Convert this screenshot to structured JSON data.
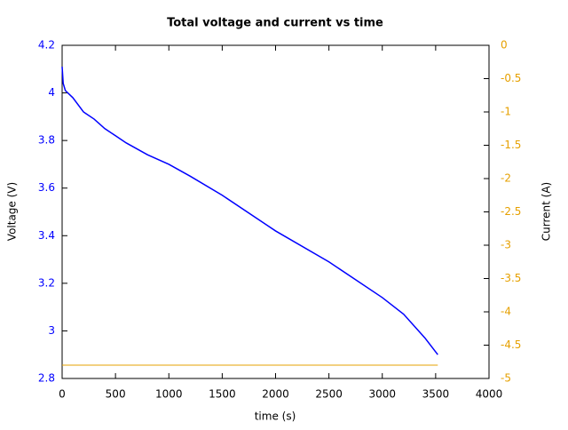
{
  "chart_data": {
    "type": "line",
    "title": "Total voltage and current vs time",
    "x_label": "time (s)",
    "y_label": "Voltage (V)",
    "y2_label": "Current (A)",
    "series": [
      {
        "name": "Voltage",
        "color": "#0000ff",
        "x": [
          0,
          10,
          30,
          100,
          200,
          300,
          400,
          500,
          600,
          800,
          1000,
          1200,
          1500,
          2000,
          2500,
          3000,
          3200,
          3400,
          3520
        ],
        "values": [
          4.11,
          4.04,
          4.01,
          3.98,
          3.92,
          3.89,
          3.85,
          3.82,
          3.79,
          3.74,
          3.7,
          3.65,
          3.57,
          3.42,
          3.29,
          3.14,
          3.07,
          2.97,
          2.9
        ]
      },
      {
        "name": "Current",
        "color": "#e6a000",
        "axis": "y2",
        "x": [
          0,
          3520
        ],
        "values": [
          -4.8,
          -4.8
        ]
      }
    ],
    "xlim": [
      0,
      4000
    ],
    "xticks": [
      0,
      500,
      1000,
      1500,
      2000,
      2500,
      3000,
      3500,
      4000
    ],
    "ylim": [
      2.8,
      4.2
    ],
    "yticks": [
      2.8,
      3,
      3.2,
      3.4,
      3.6,
      3.8,
      4,
      4.2
    ],
    "y2lim": [
      -5,
      0
    ],
    "y2ticks": [
      -5,
      -4.5,
      -4,
      -3.5,
      -3,
      -2.5,
      -2,
      -1.5,
      -1,
      -0.5,
      0
    ],
    "grid": false
  }
}
